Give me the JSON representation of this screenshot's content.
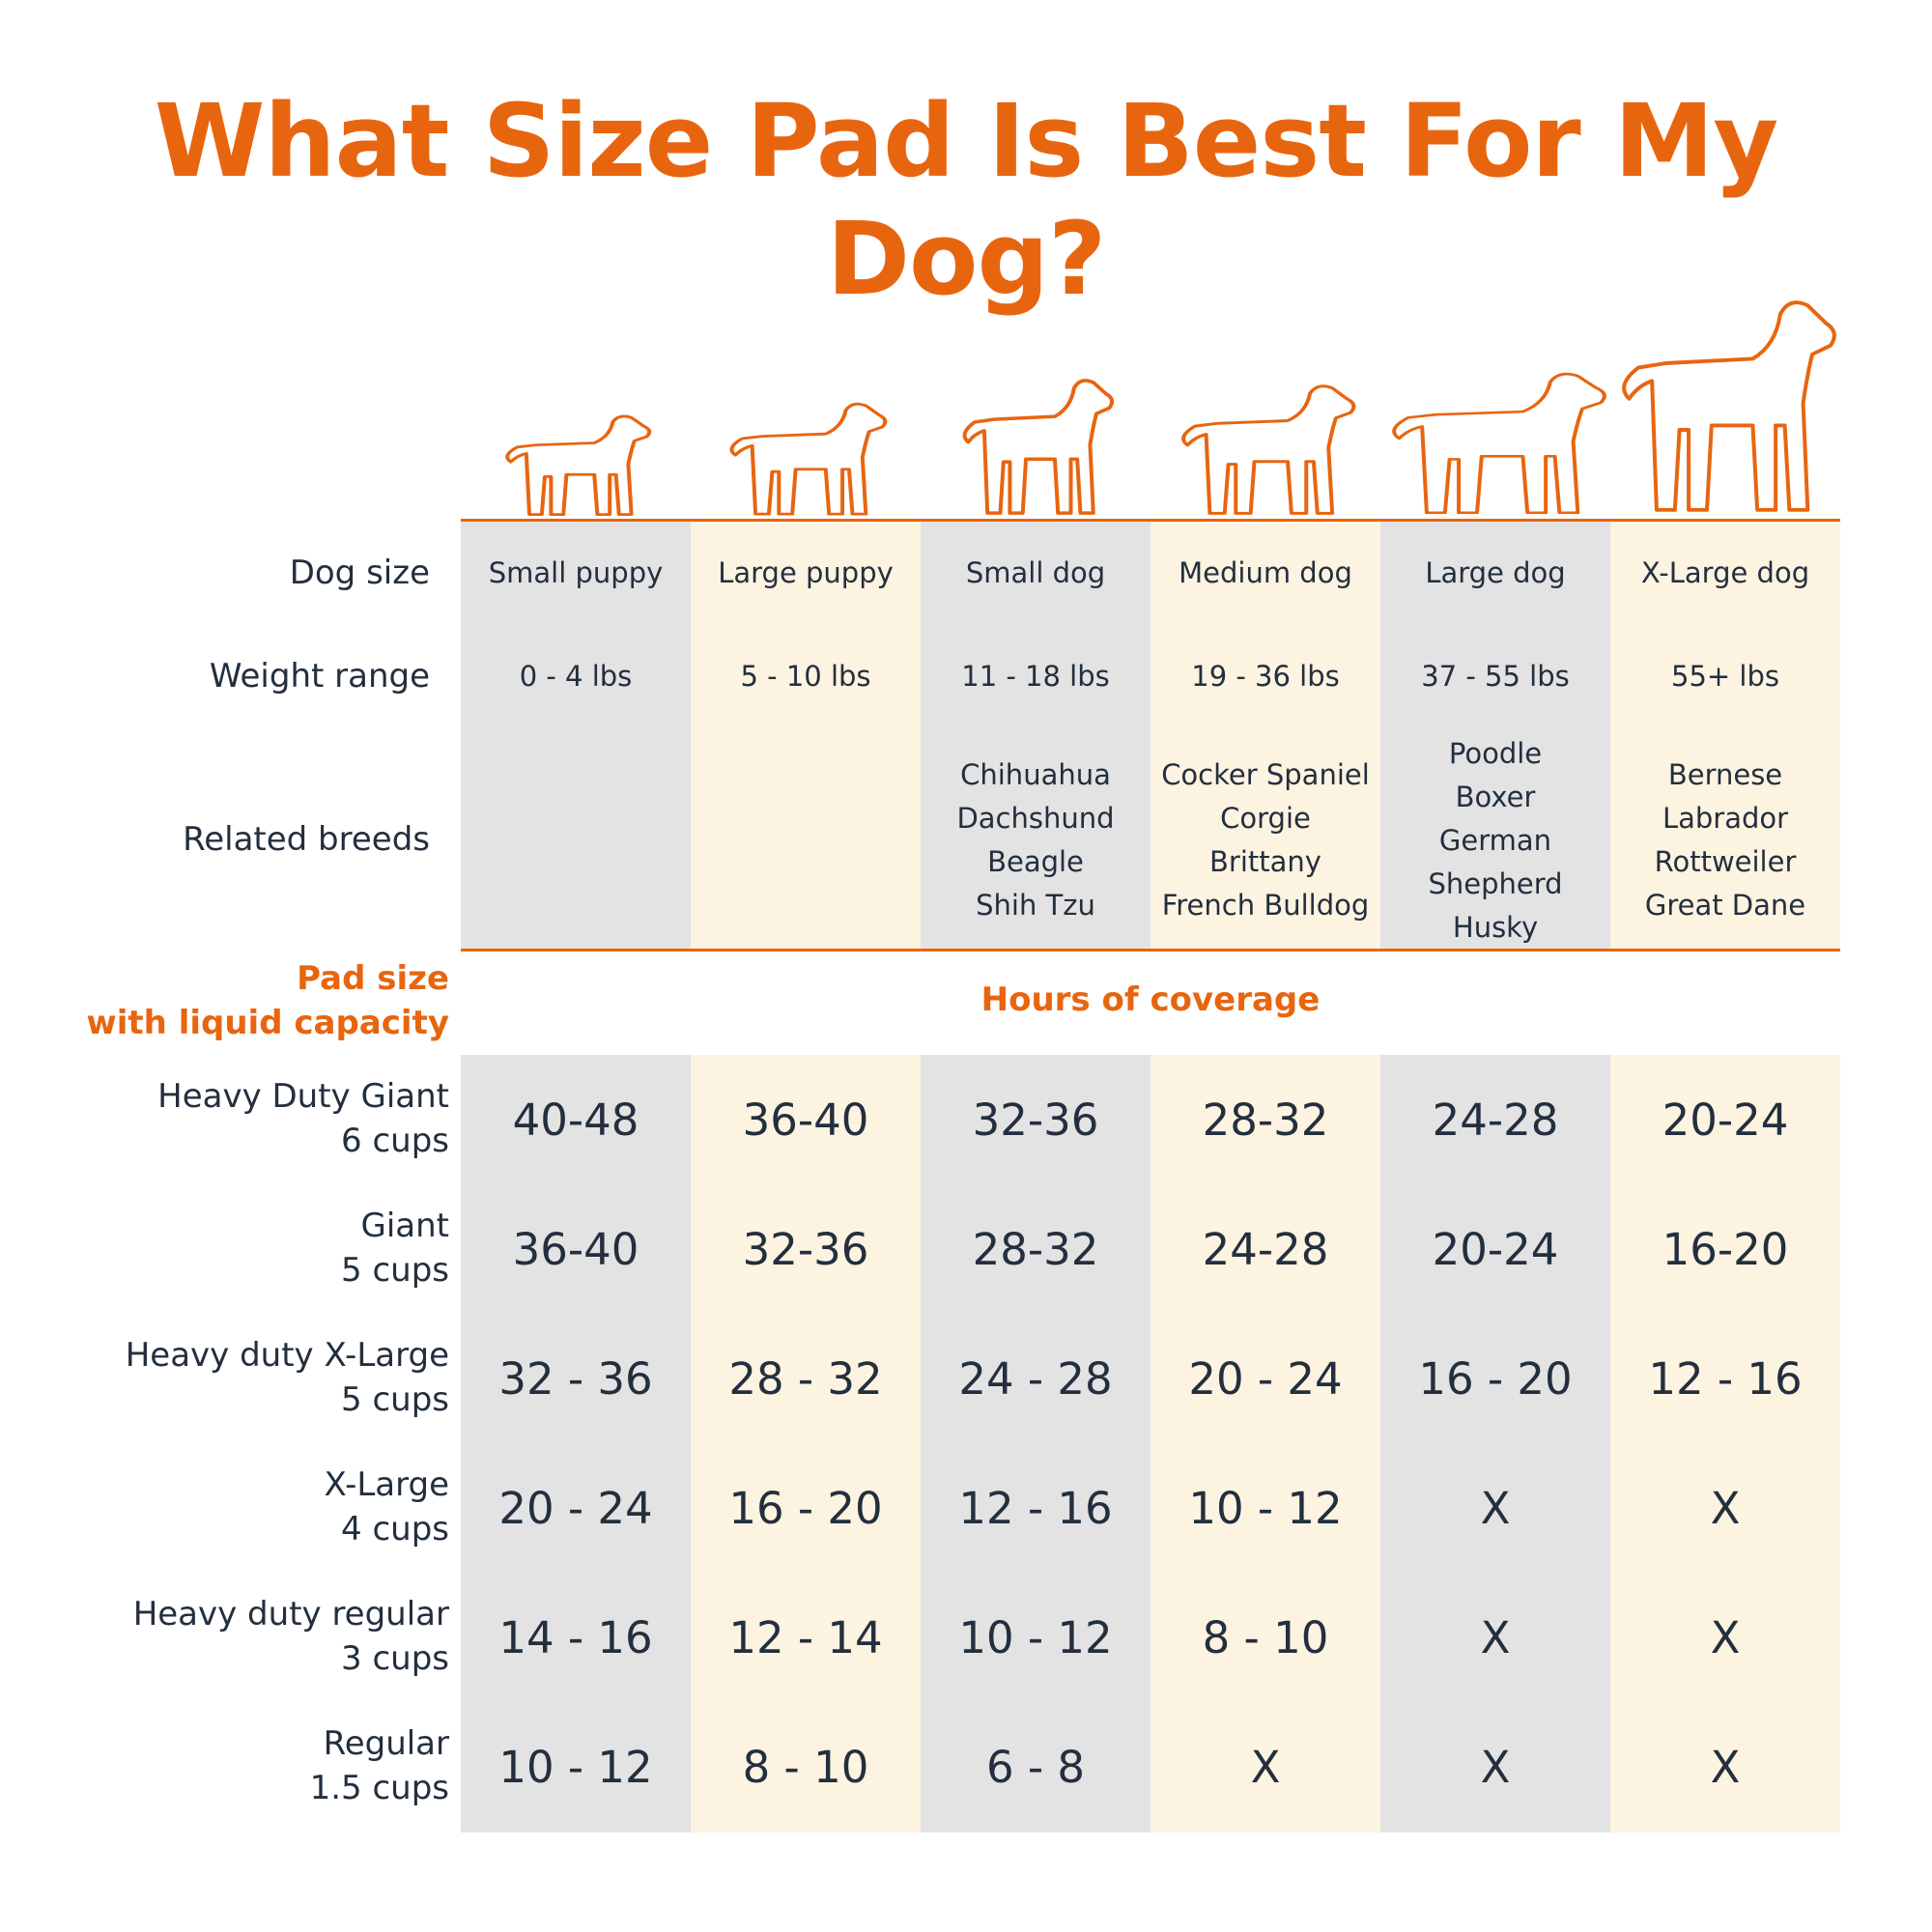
{
  "title": "What Size Pad Is Best For My Dog?",
  "colors": {
    "accent": "#e8650f",
    "text": "#232f3e",
    "gray_column": "#e3e3e3",
    "cream_column": "#fdf3e1"
  },
  "row_labels": {
    "dog_size": "Dog size",
    "weight_range": "Weight range",
    "related_breeds": "Related breeds",
    "pad_size_line1": "Pad size",
    "pad_size_line2": "with liquid capacity",
    "hours_header": "Hours of coverage"
  },
  "columns": [
    {
      "dog_size": "Small puppy",
      "weight": "0 - 4 lbs",
      "breeds": []
    },
    {
      "dog_size": "Large puppy",
      "weight": "5 - 10 lbs",
      "breeds": []
    },
    {
      "dog_size": "Small dog",
      "weight": "11 - 18 lbs",
      "breeds": [
        "Chihuahua",
        "Dachshund",
        "Beagle",
        "Shih Tzu"
      ]
    },
    {
      "dog_size": "Medium dog",
      "weight": "19 - 36 lbs",
      "breeds": [
        "Cocker Spaniel",
        "Corgie",
        "Brittany",
        "French Bulldog"
      ]
    },
    {
      "dog_size": "Large dog",
      "weight": "37 - 55 lbs",
      "breeds": [
        "Poodle",
        "Boxer",
        "German",
        "Shepherd",
        "Husky"
      ]
    },
    {
      "dog_size": "X-Large dog",
      "weight": "55+ lbs",
      "breeds": [
        "Bernese",
        "Labrador",
        "Rottweiler",
        "Great Dane"
      ]
    }
  ],
  "chart_data": {
    "type": "table",
    "title": "What Size Pad Is Best For My Dog?",
    "column_header": "Hours of coverage",
    "columns": [
      "Small puppy",
      "Large puppy",
      "Small dog",
      "Medium dog",
      "Large dog",
      "X-Large dog"
    ],
    "rows": [
      {
        "pad": "Heavy Duty Giant",
        "capacity": "6 cups",
        "values": [
          "40-48",
          "36-40",
          "32-36",
          "28-32",
          "24-28",
          "20-24"
        ]
      },
      {
        "pad": "Giant",
        "capacity": "5 cups",
        "values": [
          "36-40",
          "32-36",
          "28-32",
          "24-28",
          "20-24",
          "16-20"
        ]
      },
      {
        "pad": "Heavy duty X-Large",
        "capacity": "5 cups",
        "values": [
          "32 - 36",
          "28 - 32",
          "24 - 28",
          "20 - 24",
          "16 - 20",
          "12 - 16"
        ]
      },
      {
        "pad": "X-Large",
        "capacity": "4 cups",
        "values": [
          "20 - 24",
          "16 - 20",
          "12 - 16",
          "10 - 12",
          "X",
          "X"
        ]
      },
      {
        "pad": "Heavy duty regular",
        "capacity": "3 cups",
        "values": [
          "14 - 16",
          "12 - 14",
          "10 - 12",
          "8 - 10",
          "X",
          "X"
        ]
      },
      {
        "pad": "Regular",
        "capacity": "1.5 cups",
        "values": [
          "10 - 12",
          "8 - 10",
          "6 - 8",
          "X",
          "X",
          "X"
        ]
      }
    ]
  }
}
